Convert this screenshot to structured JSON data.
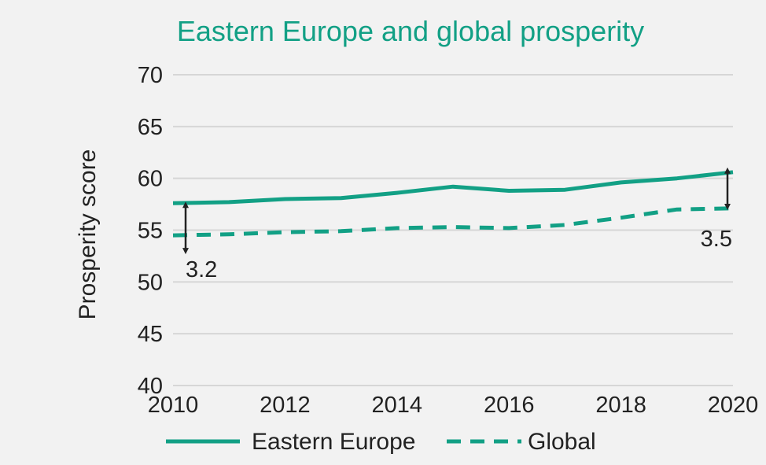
{
  "colors": {
    "accent": "#12a085",
    "grid": "#d6d6d6",
    "text": "#222222",
    "background": "#f2f2f2"
  },
  "chart_data": {
    "type": "line",
    "title": "Eastern Europe and global prosperity",
    "xlabel": "",
    "ylabel": "Prosperity score",
    "x": [
      2010,
      2011,
      2012,
      2013,
      2014,
      2015,
      2016,
      2017,
      2018,
      2019,
      2020
    ],
    "xticks": [
      "2010",
      "2012",
      "2014",
      "2016",
      "2018",
      "2020"
    ],
    "yticks": [
      "40",
      "45",
      "50",
      "55",
      "60",
      "65",
      "70"
    ],
    "xlim": [
      2010,
      2020
    ],
    "ylim": [
      40,
      70
    ],
    "grid": true,
    "legend_position": "bottom",
    "series": [
      {
        "name": "Eastern Europe",
        "style": "solid",
        "values": [
          57.6,
          57.7,
          58.0,
          58.1,
          58.6,
          59.2,
          58.8,
          58.9,
          59.6,
          60.0,
          60.6
        ]
      },
      {
        "name": "Global",
        "style": "dashed",
        "values": [
          54.5,
          54.6,
          54.8,
          54.9,
          55.2,
          55.3,
          55.2,
          55.5,
          56.2,
          57.0,
          57.1
        ]
      }
    ],
    "annotations": [
      {
        "x": 2010,
        "text": "3.2",
        "y_top": 57.6,
        "y_bottom": 54.5
      },
      {
        "x": 2020,
        "text": "3.5",
        "y_top": 60.6,
        "y_bottom": 57.1
      }
    ]
  }
}
